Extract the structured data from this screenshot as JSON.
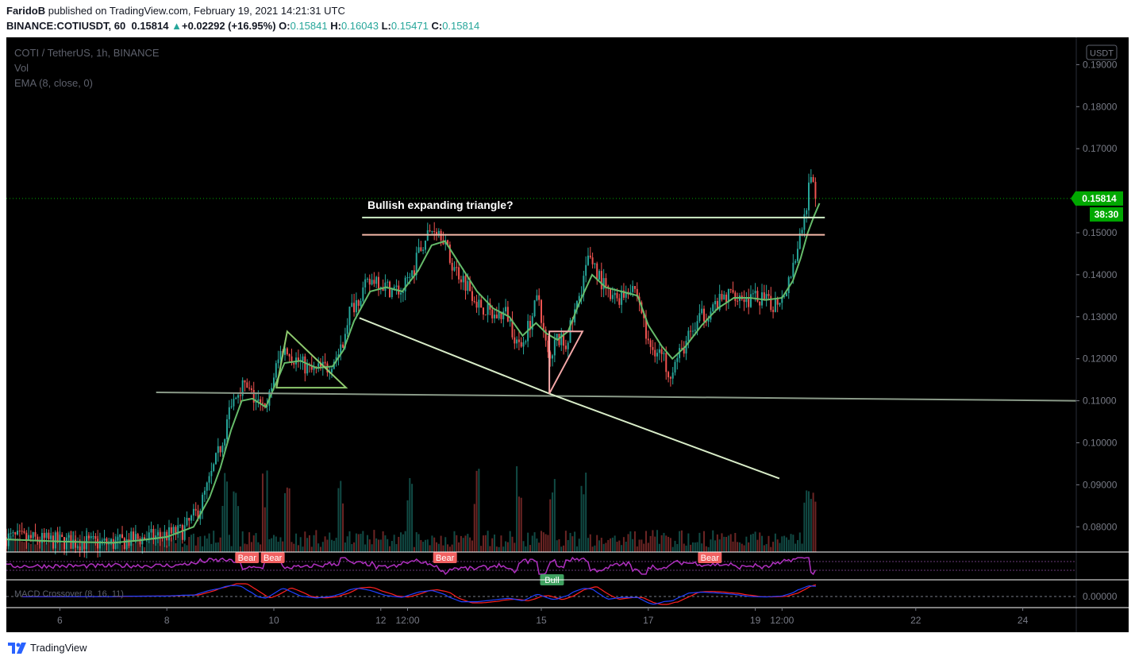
{
  "header": {
    "author": "FaridoB",
    "published_text": " published on TradingView.com, February 19, 2021 14:21:31 UTC",
    "symbol_line": "BINANCE:COTIUSDT, 60",
    "last_price": "0.15814",
    "change_arrow": "▲",
    "change": "+0.02292 (+16.95%)",
    "open_label": "O:",
    "open": "0.15841",
    "high_label": "H:",
    "high": "0.16043",
    "low_label": "L:",
    "low": "0.15471",
    "close_label": "C:",
    "close": "0.15814"
  },
  "legend": {
    "title": "COTI / TetherUS, 1h, BINANCE",
    "vol": "Vol",
    "ema": "EMA (8, close, 0)",
    "macd_label": "MACD Crossover (8, 16, 11)"
  },
  "currency_button": "USDT",
  "annotation_text": "Bullish expanding triangle?",
  "price_label": "0.15814",
  "countdown_label": "38:30",
  "badges": [
    {
      "text": "Bear",
      "kind": "bear",
      "x_day": 9.5
    },
    {
      "text": "Bear",
      "kind": "bear",
      "x_day": 9.98
    },
    {
      "text": "Bear",
      "kind": "bear",
      "x_day": 13.2
    },
    {
      "text": "Bear",
      "kind": "bear",
      "x_day": 18.15
    },
    {
      "text": "Bull",
      "kind": "bull",
      "x_day": 15.2
    }
  ],
  "footer": {
    "brand": "TradingView"
  },
  "colors": {
    "background": "#000000",
    "bull": "#26a69a",
    "bear": "#ef5350",
    "ema": "#66bb6a",
    "price_tag": "#00a800",
    "rsi": "#b030c0",
    "macd_signal": "#ff2020",
    "macd_line": "#2040ff",
    "resistance_upper": "#d0eec8",
    "resistance_lower": "#f4b8a8",
    "support_line": "#d8ecc8",
    "horizontal_support": "#8a9a88",
    "triangle_left": "#8ec96e",
    "triangle_right": "#f4a8a8",
    "badge_bear": "#f06060",
    "badge_bull": "#40a060"
  },
  "chart_data": {
    "type": "candlestick",
    "timeframe": "1h",
    "x_axis": {
      "type": "date",
      "range_days": [
        5.0,
        25.0
      ],
      "ticks": [
        {
          "label": "6",
          "day": 6.0
        },
        {
          "label": "8",
          "day": 8.0
        },
        {
          "label": "10",
          "day": 10.0
        },
        {
          "label": "12",
          "day": 12.0
        },
        {
          "label": "12:00",
          "day": 12.5
        },
        {
          "label": "15",
          "day": 15.0
        },
        {
          "label": "17",
          "day": 17.0
        },
        {
          "label": "19",
          "day": 19.0
        },
        {
          "label": "12:00",
          "day": 19.5
        },
        {
          "label": "22",
          "day": 22.0
        },
        {
          "label": "24",
          "day": 24.0
        }
      ]
    },
    "y_axis": {
      "range": [
        0.074,
        0.1965
      ],
      "ticks": [
        "0.19000",
        "0.18000",
        "0.17000",
        "0.15000",
        "0.14000",
        "0.13000",
        "0.12000",
        "0.11000",
        "0.10000",
        "0.09000",
        "0.08000"
      ]
    },
    "macd_axis": {
      "ticks": [
        "0.00000"
      ]
    },
    "price_path": [
      [
        5.0,
        0.0775
      ],
      [
        5.5,
        0.077
      ],
      [
        6.0,
        0.0765
      ],
      [
        6.5,
        0.0762
      ],
      [
        7.0,
        0.076
      ],
      [
        7.5,
        0.0772
      ],
      [
        8.0,
        0.078
      ],
      [
        8.3,
        0.079
      ],
      [
        8.6,
        0.084
      ],
      [
        8.8,
        0.091
      ],
      [
        9.0,
        0.099
      ],
      [
        9.2,
        0.108
      ],
      [
        9.4,
        0.114
      ],
      [
        9.6,
        0.111
      ],
      [
        9.85,
        0.107
      ],
      [
        10.0,
        0.116
      ],
      [
        10.15,
        0.1225
      ],
      [
        10.4,
        0.12
      ],
      [
        10.7,
        0.117
      ],
      [
        11.0,
        0.118
      ],
      [
        11.25,
        0.122
      ],
      [
        11.4,
        0.131
      ],
      [
        11.65,
        0.136
      ],
      [
        11.9,
        0.1395
      ],
      [
        12.1,
        0.137
      ],
      [
        12.4,
        0.136
      ],
      [
        12.6,
        0.141
      ],
      [
        12.8,
        0.148
      ],
      [
        13.0,
        0.1515
      ],
      [
        13.15,
        0.15
      ],
      [
        13.3,
        0.143
      ],
      [
        13.6,
        0.138
      ],
      [
        13.85,
        0.133
      ],
      [
        14.1,
        0.13
      ],
      [
        14.35,
        0.131
      ],
      [
        14.6,
        0.122
      ],
      [
        14.8,
        0.129
      ],
      [
        14.95,
        0.135
      ],
      [
        15.05,
        0.1255
      ],
      [
        15.15,
        0.119
      ],
      [
        15.3,
        0.125
      ],
      [
        15.45,
        0.123
      ],
      [
        15.65,
        0.132
      ],
      [
        15.9,
        0.145
      ],
      [
        16.1,
        0.139
      ],
      [
        16.3,
        0.134
      ],
      [
        16.5,
        0.135
      ],
      [
        16.7,
        0.138
      ],
      [
        16.85,
        0.133
      ],
      [
        17.0,
        0.123
      ],
      [
        17.2,
        0.122
      ],
      [
        17.4,
        0.117
      ],
      [
        17.55,
        0.12
      ],
      [
        17.75,
        0.125
      ],
      [
        18.0,
        0.13
      ],
      [
        18.3,
        0.133
      ],
      [
        18.6,
        0.136
      ],
      [
        18.85,
        0.134
      ],
      [
        19.1,
        0.1345
      ],
      [
        19.3,
        0.1325
      ],
      [
        19.55,
        0.136
      ],
      [
        19.65,
        0.14
      ],
      [
        19.8,
        0.147
      ],
      [
        19.95,
        0.156
      ],
      [
        20.05,
        0.164
      ],
      [
        20.15,
        0.1581
      ]
    ],
    "ema": [
      [
        5.0,
        0.077
      ],
      [
        6.0,
        0.0765
      ],
      [
        7.0,
        0.0762
      ],
      [
        7.5,
        0.0768
      ],
      [
        8.0,
        0.0776
      ],
      [
        8.5,
        0.08
      ],
      [
        8.8,
        0.087
      ],
      [
        9.0,
        0.094
      ],
      [
        9.2,
        0.103
      ],
      [
        9.4,
        0.11
      ],
      [
        9.6,
        0.1105
      ],
      [
        9.85,
        0.1085
      ],
      [
        10.0,
        0.113
      ],
      [
        10.2,
        0.119
      ],
      [
        10.5,
        0.1195
      ],
      [
        10.8,
        0.1178
      ],
      [
        11.1,
        0.1182
      ],
      [
        11.3,
        0.122
      ],
      [
        11.5,
        0.129
      ],
      [
        11.8,
        0.136
      ],
      [
        12.1,
        0.137
      ],
      [
        12.4,
        0.136
      ],
      [
        12.7,
        0.141
      ],
      [
        12.95,
        0.147
      ],
      [
        13.2,
        0.148
      ],
      [
        13.5,
        0.142
      ],
      [
        13.8,
        0.136
      ],
      [
        14.1,
        0.132
      ],
      [
        14.4,
        0.13
      ],
      [
        14.65,
        0.1255
      ],
      [
        14.9,
        0.1285
      ],
      [
        15.1,
        0.126
      ],
      [
        15.3,
        0.1245
      ],
      [
        15.5,
        0.1265
      ],
      [
        15.7,
        0.133
      ],
      [
        15.95,
        0.14
      ],
      [
        16.2,
        0.137
      ],
      [
        16.5,
        0.136
      ],
      [
        16.8,
        0.135
      ],
      [
        17.0,
        0.128
      ],
      [
        17.25,
        0.123
      ],
      [
        17.45,
        0.12
      ],
      [
        17.7,
        0.123
      ],
      [
        18.0,
        0.128
      ],
      [
        18.3,
        0.132
      ],
      [
        18.6,
        0.1345
      ],
      [
        18.9,
        0.1345
      ],
      [
        19.2,
        0.134
      ],
      [
        19.5,
        0.1345
      ],
      [
        19.7,
        0.1385
      ],
      [
        19.85,
        0.144
      ],
      [
        19.98,
        0.15
      ],
      [
        20.1,
        0.154
      ],
      [
        20.2,
        0.157
      ]
    ],
    "volume_spikes_days": [
      9.1,
      9.3,
      9.85,
      10.25,
      11.25,
      12.55,
      13.8,
      14.6,
      15.2,
      15.8,
      19.95,
      20.05
    ],
    "annotations": {
      "resistance_upper": {
        "y": 0.1536,
        "x_days": [
          11.65,
          20.3
        ]
      },
      "resistance_lower": {
        "y": 0.1495,
        "x_days": [
          11.65,
          20.3
        ]
      },
      "horizontal_support": {
        "points": [
          [
            7.8,
            0.112
          ],
          [
            25.0,
            0.11
          ]
        ]
      },
      "descending_support": {
        "points": [
          [
            11.6,
            0.1297
          ],
          [
            15.15,
            0.1117
          ],
          [
            19.45,
            0.0915
          ]
        ]
      },
      "triangle_left": {
        "points": [
          [
            10.25,
            0.1265
          ],
          [
            11.35,
            0.1131
          ],
          [
            10.05,
            0.1131
          ]
        ]
      },
      "triangle_right": {
        "points": [
          [
            15.15,
            0.1117
          ],
          [
            15.77,
            0.1265
          ],
          [
            15.15,
            0.1265
          ]
        ]
      }
    }
  }
}
